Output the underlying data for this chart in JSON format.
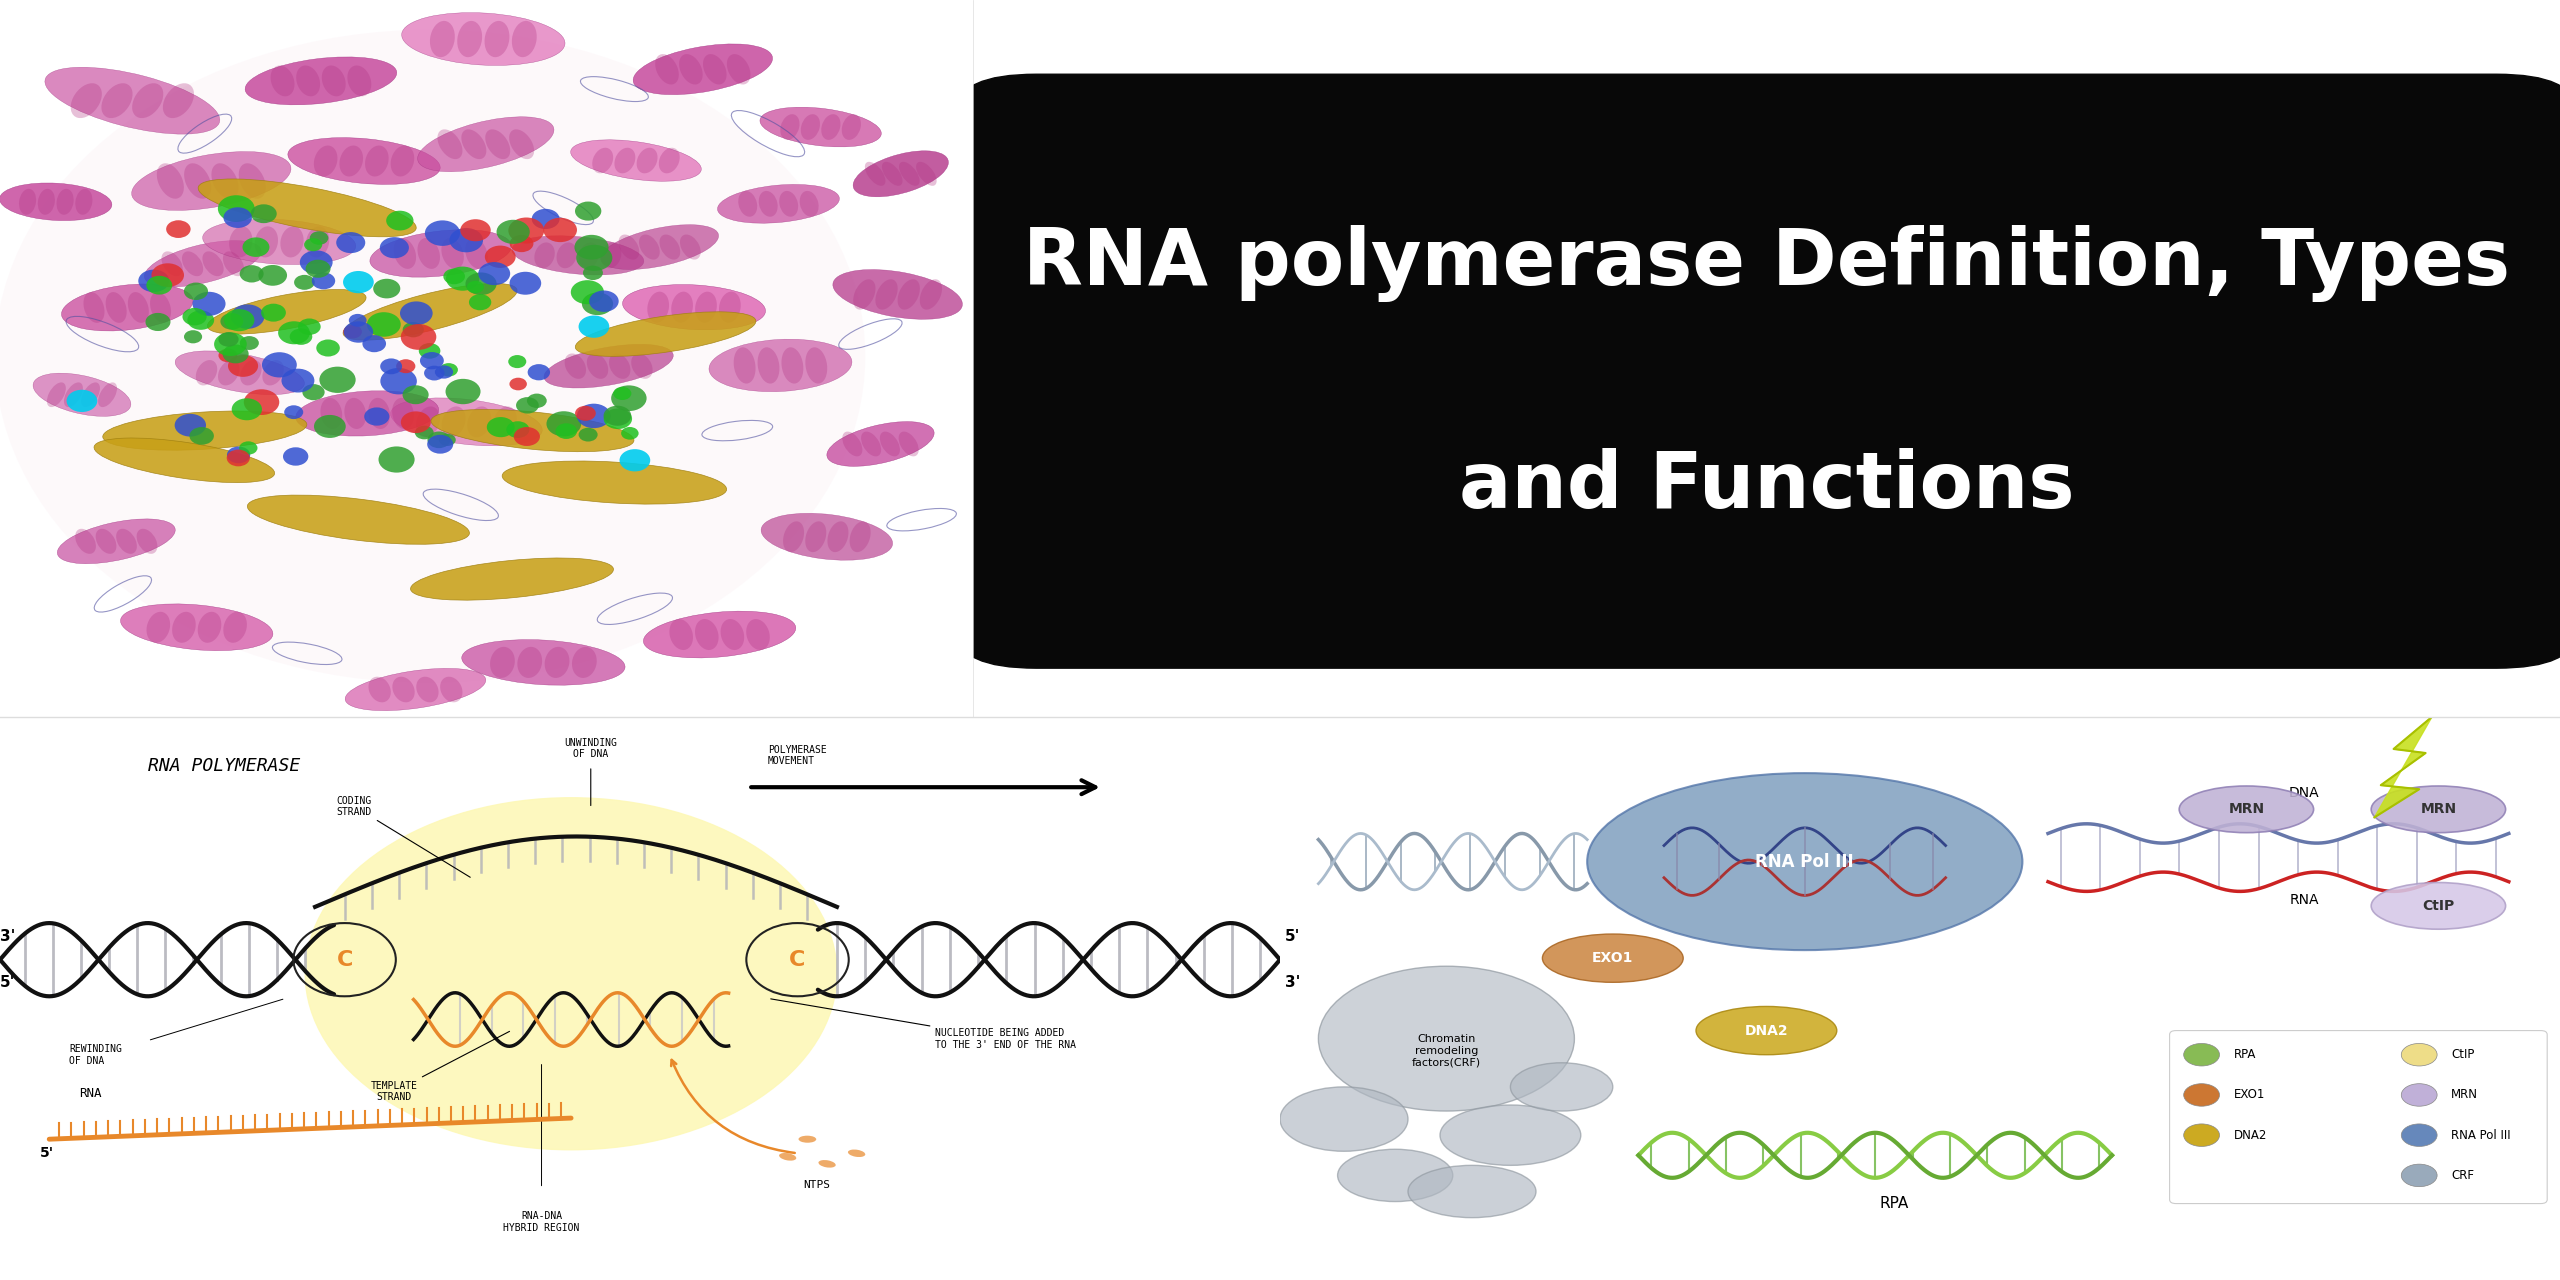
{
  "title_line1": "RNA polymerase Definition, Types",
  "title_line2": "and Functions",
  "title_bg_color": "#080808",
  "title_text_color": "#ffffff",
  "bg_color": "#ffffff",
  "dna_diagram_title": "RNA POLYMERASE",
  "labels": {
    "coding_strand": "CODING\nSTRAND",
    "template_strand": "TEMPLATE\nSTRAND",
    "rewinding": "REWINDING\nOF DNA",
    "unwinding": "UNWINDING\nOF DNA",
    "polymerase_movement": "POLYMERASE\nMOVEMENT",
    "nucleotide": "NUCLEOTIDE BEING ADDED\nTO THE 3' END OF THE RNA",
    "rna_dna_hybrid": "RNA-DNA\nHYBRID REGION",
    "rna_label": "RNA",
    "ntps": "NTPS",
    "three_prime_left": "3'",
    "five_prime_left": "5'",
    "five_prime_right": "5'",
    "three_prime_right": "3'"
  },
  "legend_items": [
    {
      "label": "RPA",
      "color": "#88bb55"
    },
    {
      "label": "EXO1",
      "color": "#cc7733"
    },
    {
      "label": "DNA2",
      "color": "#ccaa22"
    },
    {
      "label": "CtIP",
      "color": "#eedd88"
    },
    {
      "label": "MRN",
      "color": "#c0b0d8"
    },
    {
      "label": "RNA Pol III",
      "color": "#6688bb"
    },
    {
      "label": "CRF",
      "color": "#99aabb"
    }
  ],
  "pol3_labels": {
    "rna_pol_iii": "RNA Pol III",
    "dna": "DNA",
    "rna": "RNA",
    "mrn1": "MRN",
    "mrn2": "MRN",
    "ctip": "CtIP",
    "exo1": "EXO1",
    "dna2": "DNA2",
    "chromatin": "Chromatin\nremodeling\nfactors(CRF)",
    "rpa": "RPA"
  },
  "protein_bg": "#f8f0f4"
}
